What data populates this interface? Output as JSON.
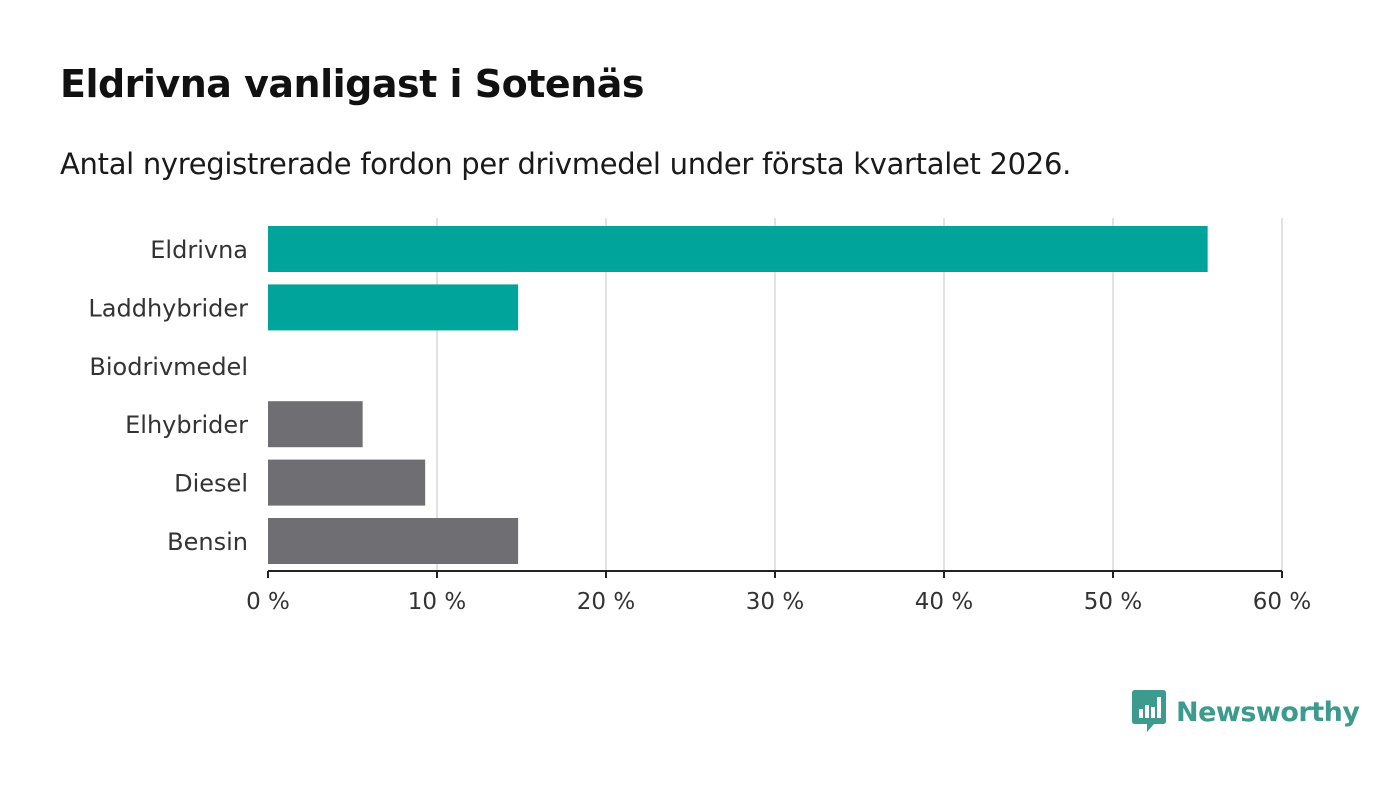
{
  "header": {
    "title": "Eldrivna vanligast i Sotenäs",
    "subtitle": "Antal nyregistrerade fordon per drivmedel under första kvartalet 2026."
  },
  "colors": {
    "highlight": "#00a49a",
    "neutral": "#6e6e73",
    "grid": "#d9d9d9",
    "axis": "#222222",
    "brand": "#3d9b8d"
  },
  "chart_data": {
    "type": "bar",
    "orientation": "horizontal",
    "title": "Eldrivna vanligast i Sotenäs",
    "subtitle": "Antal nyregistrerade fordon per drivmedel under första kvartalet 2026.",
    "xlabel": "",
    "ylabel": "",
    "xlim": [
      0,
      60
    ],
    "x_ticks": [
      0,
      10,
      20,
      30,
      40,
      50,
      60
    ],
    "tick_suffix": " %",
    "grid": true,
    "categories": [
      "Eldrivna",
      "Laddhybrider",
      "Biodrivmedel",
      "Elhybrider",
      "Diesel",
      "Bensin"
    ],
    "values": [
      55.6,
      14.8,
      0,
      5.6,
      9.3,
      14.8
    ],
    "groups": [
      "highlight",
      "highlight",
      "highlight",
      "neutral",
      "neutral",
      "neutral"
    ]
  },
  "footer": {
    "logo_text": "Newsworthy",
    "logo_icon": "bar-chart-speech-bubble-icon"
  }
}
